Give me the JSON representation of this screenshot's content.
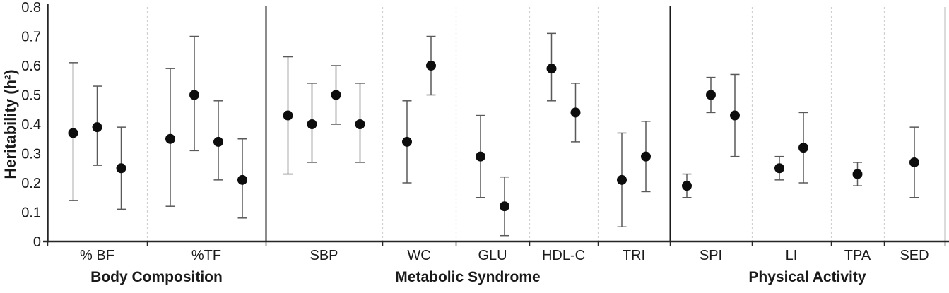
{
  "chart_data": {
    "type": "scatter",
    "title": "",
    "xlabel": "",
    "ylabel": "Heritability (h²)",
    "ylim": [
      0,
      0.8
    ],
    "yticks": [
      "0",
      "0.1",
      "0.2",
      "0.3",
      "0.4",
      "0.5",
      "0.6",
      "0.7",
      "0.8"
    ],
    "legend": "none",
    "grid": "dashed vertical separators between categories, solid vertical dividers between groups, no horizontal gridlines",
    "marker": "filled black circle with capped gray error bars (point estimate with confidence interval)",
    "groups": [
      {
        "label": "Body Composition",
        "categories": [
          {
            "label": "% BF",
            "points": [
              {
                "y": 0.37,
                "lo": 0.14,
                "hi": 0.61
              },
              {
                "y": 0.39,
                "lo": 0.26,
                "hi": 0.53
              },
              {
                "y": 0.25,
                "lo": 0.11,
                "hi": 0.39
              }
            ]
          },
          {
            "label": "%TF",
            "points": [
              {
                "y": 0.35,
                "lo": 0.12,
                "hi": 0.59
              },
              {
                "y": 0.5,
                "lo": 0.31,
                "hi": 0.7
              },
              {
                "y": 0.34,
                "lo": 0.21,
                "hi": 0.48
              },
              {
                "y": 0.21,
                "lo": 0.08,
                "hi": 0.35
              }
            ]
          }
        ]
      },
      {
        "label": "Metabolic Syndrome",
        "categories": [
          {
            "label": "SBP",
            "points": [
              {
                "y": 0.43,
                "lo": 0.23,
                "hi": 0.63
              },
              {
                "y": 0.4,
                "lo": 0.27,
                "hi": 0.54
              },
              {
                "y": 0.5,
                "lo": 0.4,
                "hi": 0.6
              },
              {
                "y": 0.4,
                "lo": 0.27,
                "hi": 0.54
              }
            ]
          },
          {
            "label": "WC",
            "points": [
              {
                "y": 0.34,
                "lo": 0.2,
                "hi": 0.48
              },
              {
                "y": 0.6,
                "lo": 0.5,
                "hi": 0.7
              }
            ]
          },
          {
            "label": "GLU",
            "points": [
              {
                "y": 0.29,
                "lo": 0.15,
                "hi": 0.43
              },
              {
                "y": 0.12,
                "lo": 0.02,
                "hi": 0.22
              }
            ]
          },
          {
            "label": "HDL-C",
            "points": [
              {
                "y": 0.59,
                "lo": 0.48,
                "hi": 0.71
              },
              {
                "y": 0.44,
                "lo": 0.34,
                "hi": 0.54
              }
            ]
          },
          {
            "label": "TRI",
            "points": [
              {
                "y": 0.21,
                "lo": 0.05,
                "hi": 0.37
              },
              {
                "y": 0.29,
                "lo": 0.17,
                "hi": 0.41
              }
            ]
          }
        ]
      },
      {
        "label": "Physical Activity",
        "categories": [
          {
            "label": "SPI",
            "points": [
              {
                "y": 0.19,
                "lo": 0.15,
                "hi": 0.23
              },
              {
                "y": 0.5,
                "lo": 0.44,
                "hi": 0.56
              },
              {
                "y": 0.43,
                "lo": 0.29,
                "hi": 0.57
              }
            ]
          },
          {
            "label": "LI",
            "points": [
              {
                "y": 0.25,
                "lo": 0.21,
                "hi": 0.29
              },
              {
                "y": 0.32,
                "lo": 0.2,
                "hi": 0.44
              }
            ]
          },
          {
            "label": "TPA",
            "points": [
              {
                "y": 0.23,
                "lo": 0.19,
                "hi": 0.27
              }
            ]
          },
          {
            "label": "SED",
            "points": [
              {
                "y": 0.27,
                "lo": 0.15,
                "hi": 0.39
              }
            ]
          }
        ]
      }
    ]
  },
  "colors": {
    "point": "#0d0d0d",
    "error_bar": "#595959",
    "axis": "#262626",
    "group_divider": "#1a1a1a",
    "separator_dashed": "#d0d0d0",
    "right_border": "#737373",
    "text": "#1a1a1a",
    "background": "#ffffff"
  }
}
